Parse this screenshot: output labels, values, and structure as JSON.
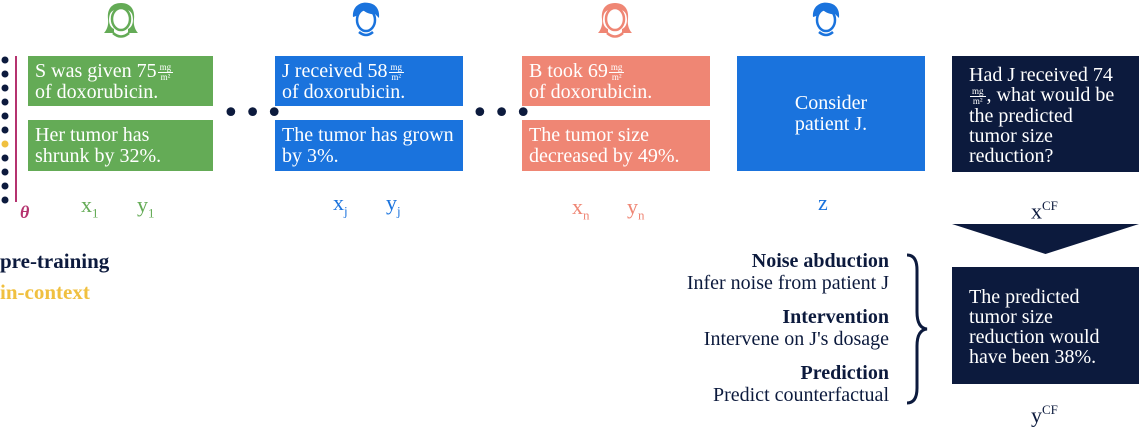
{
  "colors": {
    "green": "#64ab56",
    "blue": "#1a73dd",
    "salmon": "#ef8674",
    "navy": "#0c1a3d",
    "magenta": "#b5336f",
    "yellow": "#f0c040"
  },
  "icons": [
    "person-icon-green",
    "person-icon-blue",
    "person-icon-salmon",
    "person-icon-blue-z"
  ],
  "examples": [
    {
      "x_pre": "S was given 75",
      "x_post": "of doxorubicin.",
      "unit_num": "mg",
      "unit_den": "m²",
      "y_text": "Her tumor has shrunk by 32%.",
      "x_var": "x",
      "x_sub": "1",
      "y_var": "y",
      "y_sub": "1"
    },
    {
      "x_pre": "J received 58",
      "x_post": "of doxorubicin.",
      "unit_num": "mg",
      "unit_den": "m²",
      "y_text": "The tumor has grown by 3%.",
      "x_var": "x",
      "x_sub": "j",
      "y_var": "y",
      "y_sub": "j"
    },
    {
      "x_pre": "B took 69",
      "x_post": "of doxorubicin.",
      "unit_num": "mg",
      "unit_den": "m²",
      "y_text": "The tumor size decreased by 49%.",
      "x_var": "x",
      "x_sub": "n",
      "y_var": "y",
      "y_sub": "n"
    }
  ],
  "ellipsis": "•••",
  "z_box": {
    "text": "Consider patient J.",
    "label": "z"
  },
  "query_box": {
    "pre": "Had J received",
    "value": "74",
    "unit_num": "mg",
    "unit_den": "m²",
    "post": ", what would be the predicted tumor size reduction?",
    "label_var": "x",
    "label_sup": "CF"
  },
  "answer_box": {
    "text": "The predicted tumor size reduction would have been 38%.",
    "label_var": "y",
    "label_sup": "CF"
  },
  "theta": "θ",
  "legend": {
    "pretraining": "pre-training",
    "incontext": "in-context"
  },
  "steps": [
    {
      "head": "Noise abduction",
      "desc": "Infer noise from patient J"
    },
    {
      "head": "Intervention",
      "desc": "Intervene on J's dosage"
    },
    {
      "head": "Prediction",
      "desc": "Predict counterfactual"
    }
  ]
}
